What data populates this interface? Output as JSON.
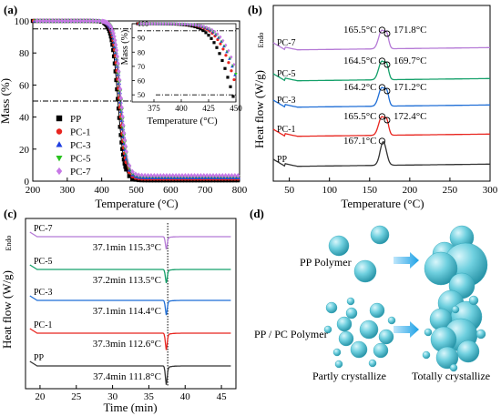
{
  "chart_data": [
    {
      "panel": "(a)",
      "type": "line",
      "xlabel": "Temperature (°C)",
      "ylabel": "Mass (%)",
      "xlim": [
        200,
        800
      ],
      "ylim": [
        0,
        100
      ],
      "xticks": [
        200,
        300,
        400,
        500,
        600,
        700,
        800
      ],
      "yticks": [
        0,
        20,
        40,
        60,
        80,
        100
      ],
      "legend_position": "center-left",
      "series": [
        {
          "name": "PP",
          "color": "#000000",
          "marker": "square",
          "onset": 395,
          "mid": 447,
          "residue": 0.5
        },
        {
          "name": "PC-1",
          "color": "#e8251f",
          "marker": "circle",
          "onset": 400,
          "mid": 452,
          "residue": 1.5
        },
        {
          "name": "PC-3",
          "color": "#1f3fe0",
          "marker": "triangle",
          "onset": 402,
          "mid": 454,
          "residue": 2.2
        },
        {
          "name": "PC-5",
          "color": "#29c21f",
          "marker": "triangle-down",
          "onset": 404,
          "mid": 455,
          "residue": 2.8
        },
        {
          "name": "PC-7",
          "color": "#c779e6",
          "marker": "diamond",
          "onset": 405,
          "mid": 456,
          "residue": 3.5
        }
      ],
      "reference_lines": [
        95,
        50
      ],
      "inset": {
        "xlabel": "Temperature (°C)",
        "ylabel": "Mass (%)",
        "xlim": [
          360,
          450
        ],
        "ylim": [
          45,
          100
        ],
        "xticks": [
          375,
          400,
          425,
          450
        ],
        "yticks": [
          50,
          60,
          70,
          80,
          90,
          100
        ]
      }
    },
    {
      "panel": "(b)",
      "type": "line",
      "xlabel": "Temperature (°C)",
      "ylabel": "Heat flow (W/g)",
      "ylabel_suffix": "Endo",
      "xlim": [
        30,
        300
      ],
      "xticks": [
        50,
        100,
        150,
        200,
        250,
        300
      ],
      "series": [
        {
          "name": "PP",
          "color": "#333333",
          "peaks": [
            "167.1°C"
          ]
        },
        {
          "name": "PC-1",
          "color": "#e8251f",
          "peaks": [
            "165.5°C",
            "172.4°C"
          ]
        },
        {
          "name": "PC-3",
          "color": "#1f6ed6",
          "peaks": [
            "164.2°C",
            "171.2°C"
          ]
        },
        {
          "name": "PC-5",
          "color": "#14a06a",
          "peaks": [
            "164.5°C",
            "169.7°C"
          ]
        },
        {
          "name": "PC-7",
          "color": "#b57ad6",
          "peaks": [
            "165.5°C",
            "171.8°C"
          ]
        }
      ]
    },
    {
      "panel": "(c)",
      "type": "line",
      "xlabel": "Time (min)",
      "ylabel": "Heat flow (W/g)",
      "ylabel_suffix": "Endo",
      "xlim": [
        18,
        47
      ],
      "xticks": [
        20,
        25,
        30,
        35,
        40,
        45
      ],
      "series": [
        {
          "name": "PP",
          "color": "#333333",
          "annotation": "37.4min 111.8°C"
        },
        {
          "name": "PC-1",
          "color": "#e8251f",
          "annotation": "37.3min 112.6°C"
        },
        {
          "name": "PC-3",
          "color": "#1f6ed6",
          "annotation": "37.1min 114.4°C"
        },
        {
          "name": "PC-5",
          "color": "#14a06a",
          "annotation": "37.2min 113.5°C"
        },
        {
          "name": "PC-7",
          "color": "#b57ad6",
          "annotation": "37.1min 115.3°C"
        }
      ]
    },
    {
      "panel": "(d)",
      "type": "diagram",
      "labels": [
        "PP Polymer",
        "PP / PC Polymer",
        "Partly crystallize",
        "Totally crystallize"
      ]
    }
  ]
}
